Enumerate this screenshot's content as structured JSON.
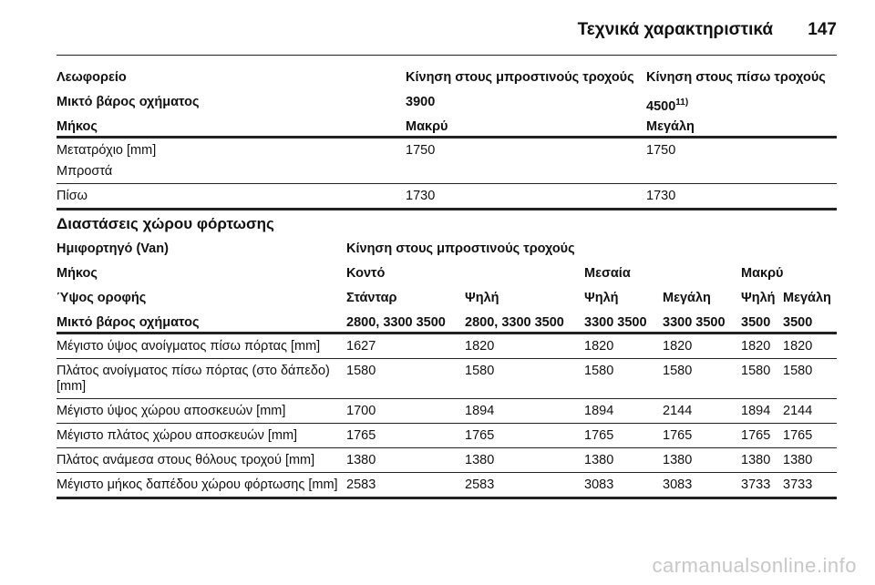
{
  "header": {
    "title": "Τεχνικά χαρακτηριστικά",
    "page": "147"
  },
  "table1": {
    "header_rows": [
      [
        "Λεωφορείο",
        "Κίνηση στους μπροστινούς τροχούς",
        "Κίνηση στους πίσω τροχούς"
      ],
      [
        "Μικτό βάρος οχήματος",
        "3900",
        "4500"
      ],
      [
        "Μήκος",
        "Μακρύ",
        "Μεγάλη"
      ]
    ],
    "footnote_ref": "11)",
    "rows": [
      {
        "cells": [
          "Μετατρόχιο [mm]",
          "1750",
          "1750"
        ],
        "sublabel": "Μπροστά"
      },
      {
        "cells": [
          "Πίσω",
          "1730",
          "1730"
        ]
      }
    ]
  },
  "section_title": "Διαστάσεις χώρου φόρτωσης",
  "table2": {
    "header_rows": [
      [
        "Ημιφορτηγό (Van)",
        "Κίνηση στους μπροστινούς τροχούς"
      ],
      [
        "Μήκος",
        "Κοντό",
        "Μεσαία",
        "Μακρύ"
      ],
      [
        "Ύψος οροφής",
        "Στάνταρ",
        "Ψηλή",
        "Ψηλή",
        "Μεγάλη",
        "Ψηλή",
        "Μεγάλη"
      ],
      [
        "Μικτό βάρος οχήματος",
        "2800, 3300 3500",
        "2800, 3300 3500",
        "3300 3500",
        "3300 3500",
        "3500",
        "3500"
      ]
    ],
    "rows": [
      [
        "Μέγιστο ύψος ανοίγματος πίσω πόρτας [mm]",
        "1627",
        "1820",
        "1820",
        "1820",
        "1820",
        "1820"
      ],
      [
        "Πλάτος ανοίγματος πίσω πόρτας (στο δάπεδο) [mm]",
        "1580",
        "1580",
        "1580",
        "1580",
        "1580",
        "1580"
      ],
      [
        "Μέγιστο ύψος χώρου αποσκευών [mm]",
        "1700",
        "1894",
        "1894",
        "2144",
        "1894",
        "2144"
      ],
      [
        "Μέγιστο πλάτος χώρου αποσκευών [mm]",
        "1765",
        "1765",
        "1765",
        "1765",
        "1765",
        "1765"
      ],
      [
        "Πλάτος ανάμεσα στους θόλους τροχού [mm]",
        "1380",
        "1380",
        "1380",
        "1380",
        "1380",
        "1380"
      ],
      [
        "Μέγιστο μήκος δαπέδου χώρου φόρτωσης [mm]",
        "2583",
        "2583",
        "3083",
        "3083",
        "3733",
        "3733"
      ]
    ]
  },
  "watermark": "carmanualsonline.info"
}
